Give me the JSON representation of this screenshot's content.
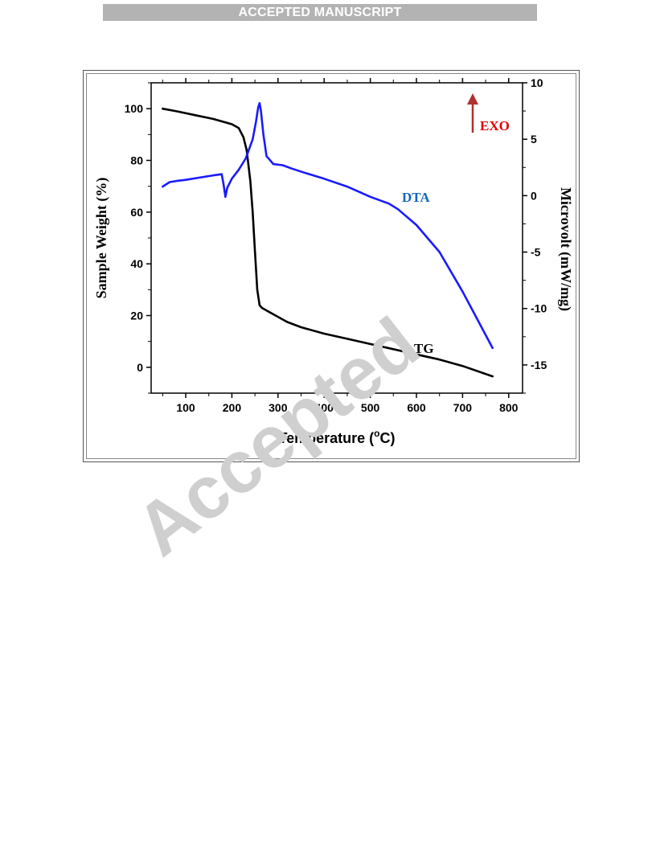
{
  "header": {
    "banner": "ACCEPTED MANUSCRIPT"
  },
  "watermark": {
    "text": "Accepted"
  },
  "chart_data": {
    "type": "line",
    "xlabel": "Temperature (°C)",
    "xlabel_parts": {
      "main": "Temperature (",
      "sup": "o",
      "end": "C)"
    },
    "ylabel_left": "Sample Weight (%)",
    "ylabel_right": "Microvolt (mW/mg)",
    "x_ticks": [
      100,
      200,
      300,
      400,
      500,
      600,
      700,
      800
    ],
    "y_left_ticks": [
      0,
      20,
      40,
      60,
      80,
      100
    ],
    "y_right_ticks": [
      -15,
      -10,
      -5,
      0,
      5,
      10
    ],
    "xlim": [
      25,
      830
    ],
    "ylim_left": [
      -10,
      110
    ],
    "ylim_right": [
      -17.5,
      10
    ],
    "annotation": {
      "text": "EXO",
      "color": "#e00000",
      "arrow_color": "#b03030"
    },
    "series": [
      {
        "name": "TG",
        "axis": "left",
        "color": "#000000",
        "x": [
          50,
          80,
          120,
          160,
          200,
          215,
          225,
          232,
          240,
          245,
          250,
          255,
          260,
          265,
          270,
          280,
          300,
          320,
          350,
          400,
          450,
          500,
          550,
          600,
          650,
          700,
          765
        ],
        "y": [
          100,
          99,
          97.5,
          96,
          94,
          92.5,
          89,
          84,
          72,
          60,
          45,
          30,
          24,
          23,
          22.5,
          21.5,
          19.5,
          17.5,
          15.5,
          13,
          11,
          9,
          7,
          5,
          3,
          0.5,
          -3.5
        ]
      },
      {
        "name": "DTA",
        "axis": "right",
        "color": "#1a1aff",
        "label_color": "#1565c0",
        "x": [
          50,
          65,
          80,
          100,
          130,
          160,
          178,
          182,
          186,
          190,
          200,
          215,
          230,
          245,
          252,
          257,
          260,
          263,
          268,
          275,
          290,
          310,
          330,
          360,
          400,
          450,
          500,
          540,
          560,
          600,
          650,
          700,
          730,
          765
        ],
        "y": [
          0.8,
          1.2,
          1.3,
          1.4,
          1.6,
          1.8,
          1.9,
          1.0,
          -0.1,
          0.7,
          1.5,
          2.3,
          3.3,
          5.0,
          6.5,
          7.8,
          8.2,
          7.5,
          5.5,
          3.5,
          2.8,
          2.7,
          2.4,
          2.0,
          1.5,
          0.8,
          -0.1,
          -0.7,
          -1.2,
          -2.6,
          -5.0,
          -8.5,
          -10.8,
          -13.5
        ]
      }
    ]
  }
}
